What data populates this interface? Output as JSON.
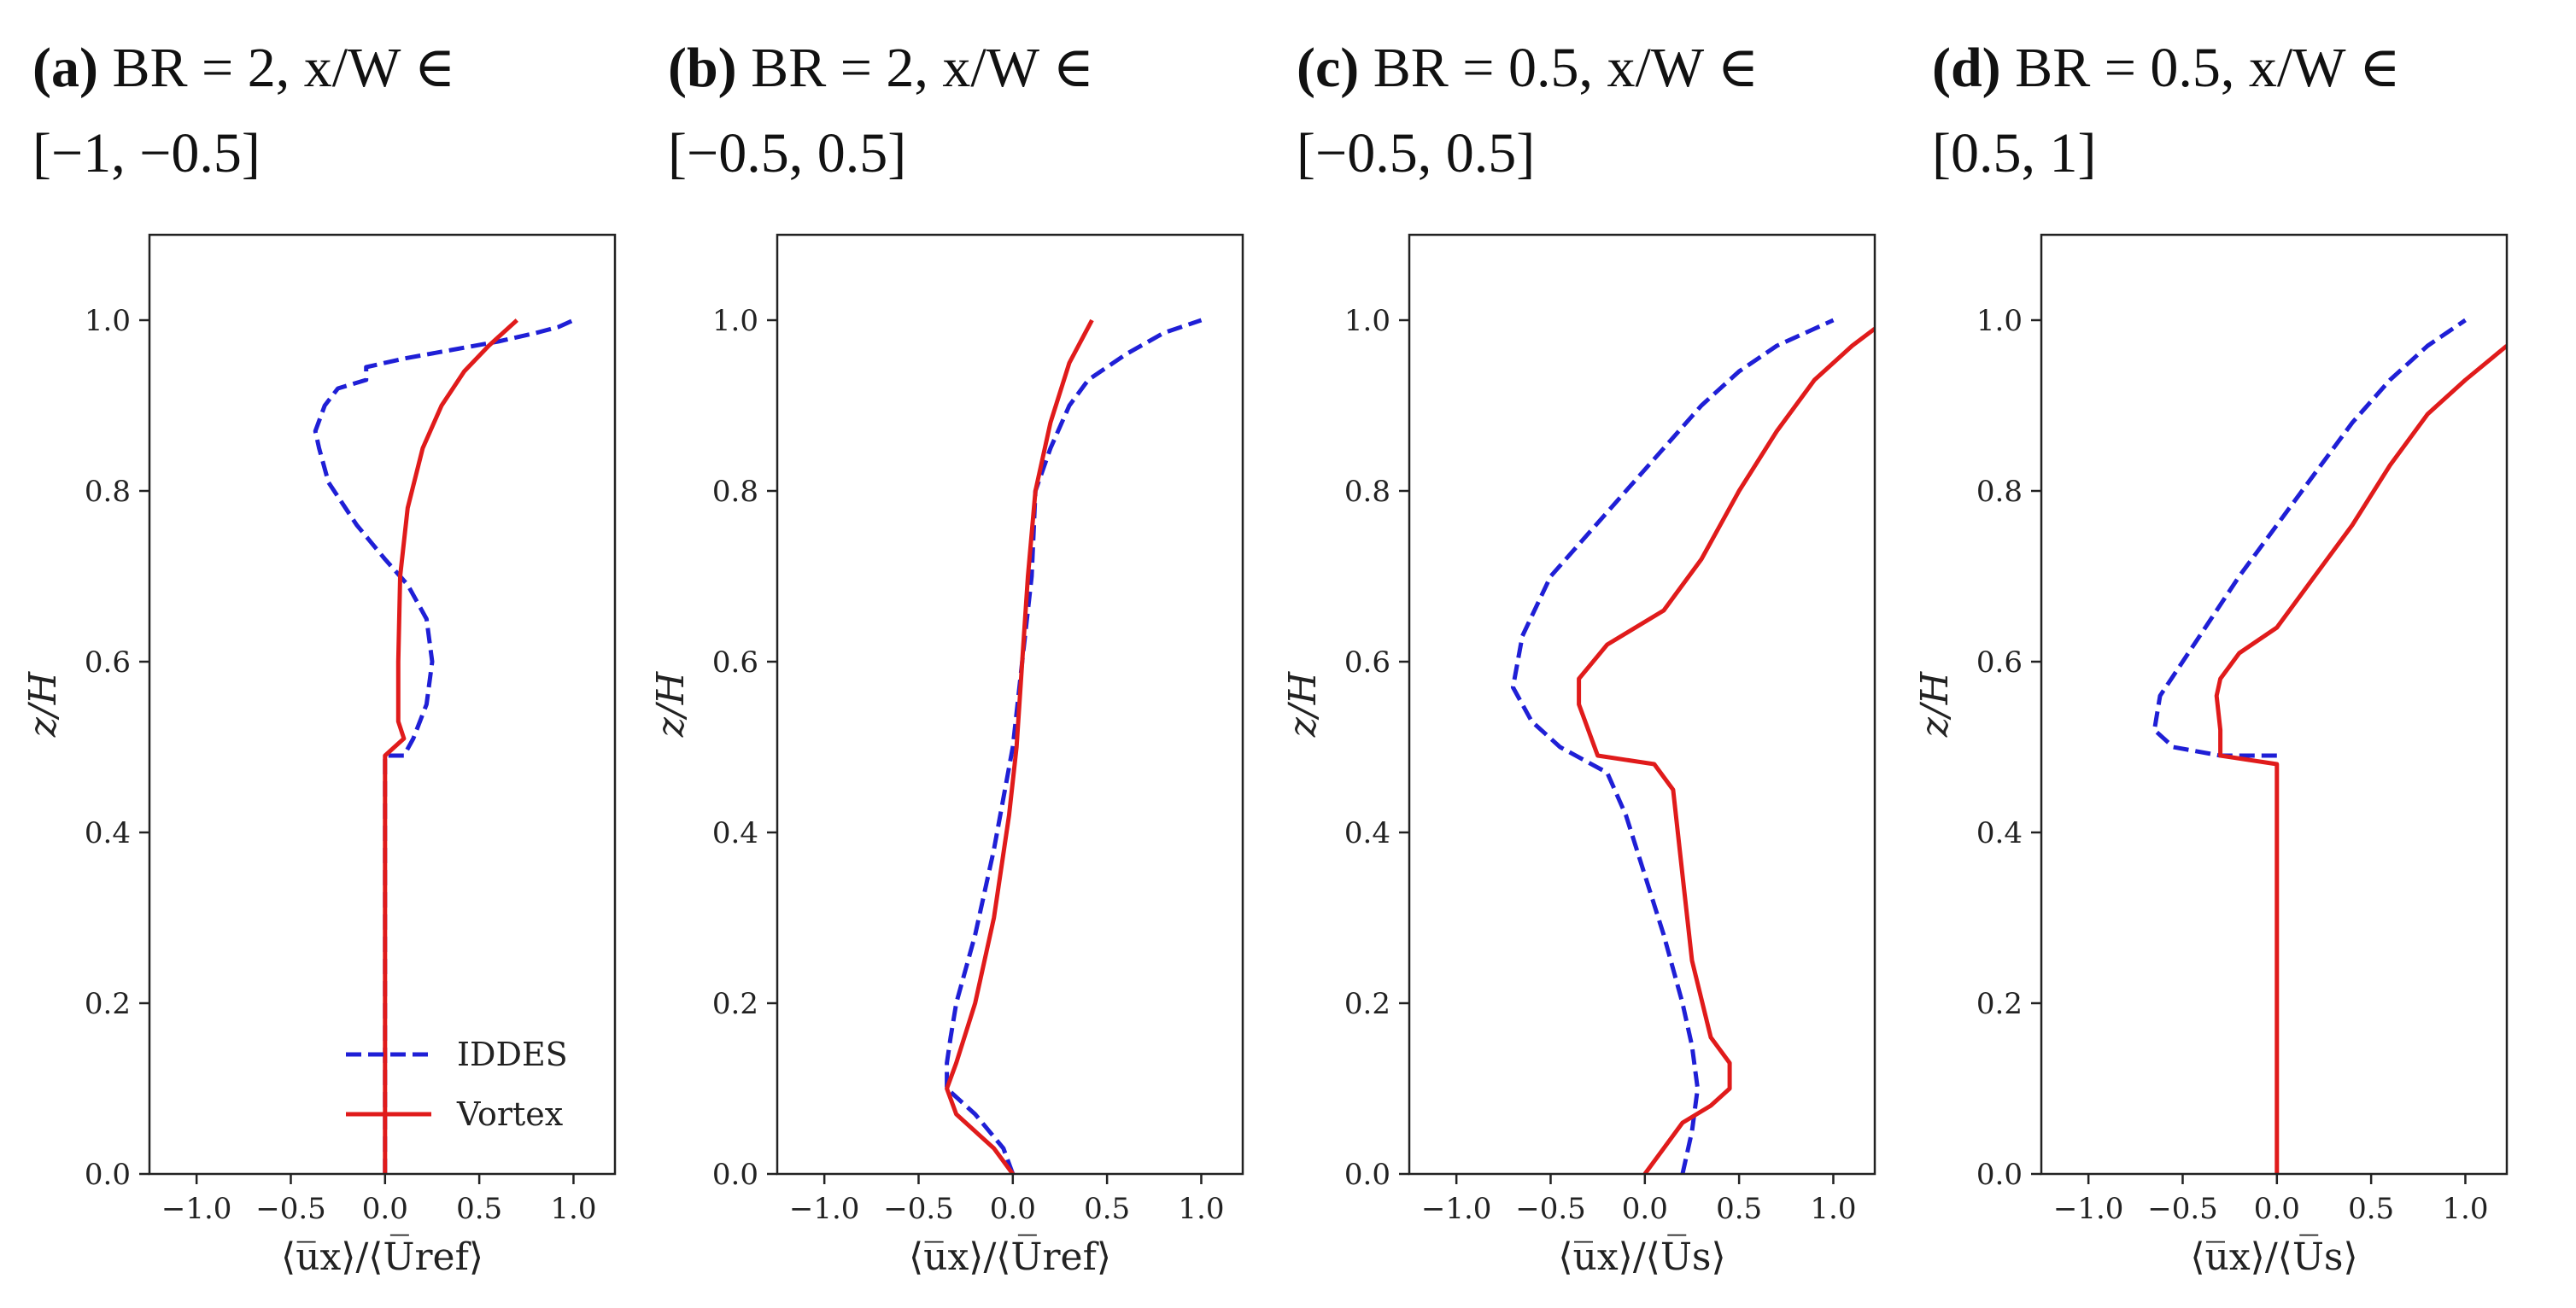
{
  "colors": {
    "iddes": "#1f1fd6",
    "vortex": "#e01b1b",
    "axis": "#222222"
  },
  "captions": [
    {
      "label": "(a)",
      "line1": "BR = 2, x/W ∈",
      "line2": "[−1, −0.5]"
    },
    {
      "label": "(b)",
      "line1": "BR = 2, x/W ∈",
      "line2": "[−0.5, 0.5]"
    },
    {
      "label": "(c)",
      "line1": "BR = 0.5, x/W ∈",
      "line2": "[−0.5, 0.5]"
    },
    {
      "label": "(d)",
      "line1": "BR = 0.5, x/W ∈",
      "line2": "[0.5, 1]"
    }
  ],
  "chart_data": [
    {
      "type": "line",
      "title": "(a) BR = 2, x/W ∈ [−1, −0.5]",
      "xlabel": "⟨u̅x⟩/⟨U̅ref⟩",
      "ylabel": "z/H",
      "xlim": [
        -1.25,
        1.22
      ],
      "ylim": [
        0,
        1.1
      ],
      "xticks": [
        -1.0,
        -0.5,
        0.0,
        0.5,
        1.0
      ],
      "xtick_labels": [
        "−1.0",
        "−0.5",
        "0.0",
        "0.5",
        "1.0"
      ],
      "yticks": [
        0.0,
        0.2,
        0.4,
        0.6,
        0.8,
        1.0
      ],
      "ytick_labels": [
        "0.0",
        "0.2",
        "0.4",
        "0.6",
        "0.8",
        "1.0"
      ],
      "legend": {
        "position": "bottom-right",
        "entries": [
          "IDDES",
          "Vortex"
        ]
      },
      "series": [
        {
          "name": "IDDES",
          "style": "dashed",
          "color": "#1f1fd6",
          "points": [
            [
              0,
              0
            ],
            [
              0,
              0.49
            ],
            [
              0.1,
              0.49
            ],
            [
              0.15,
              0.51
            ],
            [
              0.22,
              0.55
            ],
            [
              0.25,
              0.6
            ],
            [
              0.22,
              0.65
            ],
            [
              0.12,
              0.69
            ],
            [
              0,
              0.72
            ],
            [
              -0.15,
              0.76
            ],
            [
              -0.3,
              0.81
            ],
            [
              -0.35,
              0.85
            ],
            [
              -0.37,
              0.87
            ],
            [
              -0.32,
              0.9
            ],
            [
              -0.25,
              0.92
            ],
            [
              -0.1,
              0.93
            ],
            [
              -0.1,
              0.945
            ],
            [
              0.1,
              0.955
            ],
            [
              0.35,
              0.965
            ],
            [
              0.6,
              0.975
            ],
            [
              0.8,
              0.985
            ],
            [
              0.92,
              0.992
            ],
            [
              1.0,
              1.0
            ]
          ]
        },
        {
          "name": "Vortex",
          "style": "solid",
          "color": "#e01b1b",
          "points": [
            [
              0,
              0
            ],
            [
              0,
              0.49
            ],
            [
              0.05,
              0.5
            ],
            [
              0.1,
              0.51
            ],
            [
              0.07,
              0.53
            ],
            [
              0.07,
              0.6
            ],
            [
              0.08,
              0.7
            ],
            [
              0.12,
              0.78
            ],
            [
              0.2,
              0.85
            ],
            [
              0.3,
              0.9
            ],
            [
              0.42,
              0.94
            ],
            [
              0.55,
              0.97
            ],
            [
              0.7,
              1.0
            ]
          ]
        }
      ]
    },
    {
      "type": "line",
      "title": "(b) BR = 2, x/W ∈ [−0.5, 0.5]",
      "xlabel": "⟨u̅x⟩/⟨U̅ref⟩",
      "ylabel": "z/H",
      "xlim": [
        -1.25,
        1.22
      ],
      "ylim": [
        0,
        1.1
      ],
      "xticks": [
        -1.0,
        -0.5,
        0.0,
        0.5,
        1.0
      ],
      "xtick_labels": [
        "−1.0",
        "−0.5",
        "0.0",
        "0.5",
        "1.0"
      ],
      "yticks": [
        0.0,
        0.2,
        0.4,
        0.6,
        0.8,
        1.0
      ],
      "ytick_labels": [
        "0.0",
        "0.2",
        "0.4",
        "0.6",
        "0.8",
        "1.0"
      ],
      "series": [
        {
          "name": "IDDES",
          "style": "dashed",
          "color": "#1f1fd6",
          "points": [
            [
              0,
              0
            ],
            [
              -0.05,
              0.03
            ],
            [
              -0.2,
              0.07
            ],
            [
              -0.35,
              0.1
            ],
            [
              -0.35,
              0.13
            ],
            [
              -0.33,
              0.16
            ],
            [
              -0.3,
              0.2
            ],
            [
              -0.2,
              0.28
            ],
            [
              -0.1,
              0.38
            ],
            [
              0,
              0.5
            ],
            [
              0.05,
              0.6
            ],
            [
              0.1,
              0.7
            ],
            [
              0.12,
              0.8
            ],
            [
              0.2,
              0.85
            ],
            [
              0.3,
              0.9
            ],
            [
              0.4,
              0.93
            ],
            [
              0.6,
              0.96
            ],
            [
              0.8,
              0.985
            ],
            [
              1.0,
              1.0
            ]
          ]
        },
        {
          "name": "Vortex",
          "style": "solid",
          "color": "#e01b1b",
          "points": [
            [
              0,
              0
            ],
            [
              -0.1,
              0.03
            ],
            [
              -0.3,
              0.07
            ],
            [
              -0.35,
              0.1
            ],
            [
              -0.3,
              0.13
            ],
            [
              -0.2,
              0.2
            ],
            [
              -0.1,
              0.3
            ],
            [
              -0.02,
              0.42
            ],
            [
              0.02,
              0.5
            ],
            [
              0.05,
              0.6
            ],
            [
              0.08,
              0.7
            ],
            [
              0.12,
              0.8
            ],
            [
              0.2,
              0.88
            ],
            [
              0.3,
              0.95
            ],
            [
              0.42,
              1.0
            ]
          ]
        }
      ]
    },
    {
      "type": "line",
      "title": "(c) BR = 0.5, x/W ∈ [−0.5, 0.5]",
      "xlabel": "⟨u̅x⟩/⟨U̅s⟩",
      "ylabel": "z/H",
      "xlim": [
        -1.25,
        1.22
      ],
      "ylim": [
        0,
        1.1
      ],
      "xticks": [
        -1.0,
        -0.5,
        0.0,
        0.5,
        1.0
      ],
      "xtick_labels": [
        "−1.0",
        "−0.5",
        "0.0",
        "0.5",
        "1.0"
      ],
      "yticks": [
        0.0,
        0.2,
        0.4,
        0.6,
        0.8,
        1.0
      ],
      "ytick_labels": [
        "0.0",
        "0.2",
        "0.4",
        "0.6",
        "0.8",
        "1.0"
      ],
      "series": [
        {
          "name": "IDDES",
          "style": "dashed",
          "color": "#1f1fd6",
          "points": [
            [
              0.2,
              0
            ],
            [
              0.25,
              0.05
            ],
            [
              0.28,
              0.1
            ],
            [
              0.25,
              0.15
            ],
            [
              0.2,
              0.2
            ],
            [
              0.1,
              0.28
            ],
            [
              0,
              0.35
            ],
            [
              -0.1,
              0.42
            ],
            [
              -0.2,
              0.47
            ],
            [
              -0.45,
              0.5
            ],
            [
              -0.6,
              0.53
            ],
            [
              -0.7,
              0.57
            ],
            [
              -0.65,
              0.63
            ],
            [
              -0.5,
              0.7
            ],
            [
              -0.3,
              0.75
            ],
            [
              -0.1,
              0.8
            ],
            [
              0.1,
              0.85
            ],
            [
              0.3,
              0.9
            ],
            [
              0.5,
              0.94
            ],
            [
              0.7,
              0.97
            ],
            [
              0.9,
              0.99
            ],
            [
              1.0,
              1.0
            ]
          ]
        },
        {
          "name": "Vortex",
          "style": "solid",
          "color": "#e01b1b",
          "points": [
            [
              0,
              0
            ],
            [
              0.1,
              0.03
            ],
            [
              0.2,
              0.06
            ],
            [
              0.35,
              0.08
            ],
            [
              0.45,
              0.1
            ],
            [
              0.45,
              0.13
            ],
            [
              0.35,
              0.16
            ],
            [
              0.25,
              0.25
            ],
            [
              0.2,
              0.35
            ],
            [
              0.15,
              0.45
            ],
            [
              0.05,
              0.48
            ],
            [
              -0.25,
              0.49
            ],
            [
              -0.3,
              0.52
            ],
            [
              -0.35,
              0.55
            ],
            [
              -0.35,
              0.58
            ],
            [
              -0.2,
              0.62
            ],
            [
              0.1,
              0.66
            ],
            [
              0.3,
              0.72
            ],
            [
              0.5,
              0.8
            ],
            [
              0.7,
              0.87
            ],
            [
              0.9,
              0.93
            ],
            [
              1.1,
              0.97
            ],
            [
              1.22,
              0.99
            ]
          ]
        }
      ]
    },
    {
      "type": "line",
      "title": "(d) BR = 0.5, x/W ∈ [0.5, 1]",
      "xlabel": "⟨u̅x⟩/⟨U̅s⟩",
      "ylabel": "z/H",
      "xlim": [
        -1.25,
        1.22
      ],
      "ylim": [
        0,
        1.1
      ],
      "xticks": [
        -1.0,
        -0.5,
        0.0,
        0.5,
        1.0
      ],
      "xtick_labels": [
        "−1.0",
        "−0.5",
        "0.0",
        "0.5",
        "1.0"
      ],
      "yticks": [
        0.0,
        0.2,
        0.4,
        0.6,
        0.8,
        1.0
      ],
      "ytick_labels": [
        "0.0",
        "0.2",
        "0.4",
        "0.6",
        "0.8",
        "1.0"
      ],
      "series": [
        {
          "name": "IDDES",
          "style": "dashed",
          "color": "#1f1fd6",
          "points": [
            [
              0,
              0.49
            ],
            [
              -0.3,
              0.49
            ],
            [
              -0.55,
              0.5
            ],
            [
              -0.65,
              0.52
            ],
            [
              -0.62,
              0.56
            ],
            [
              -0.5,
              0.6
            ],
            [
              -0.35,
              0.65
            ],
            [
              -0.2,
              0.7
            ],
            [
              0,
              0.76
            ],
            [
              0.2,
              0.82
            ],
            [
              0.4,
              0.88
            ],
            [
              0.6,
              0.93
            ],
            [
              0.8,
              0.97
            ],
            [
              1.0,
              1.0
            ]
          ]
        },
        {
          "name": "Vortex",
          "style": "solid",
          "color": "#e01b1b",
          "points": [
            [
              0,
              0
            ],
            [
              0,
              0.48
            ],
            [
              -0.3,
              0.49
            ],
            [
              -0.3,
              0.52
            ],
            [
              -0.32,
              0.56
            ],
            [
              -0.3,
              0.58
            ],
            [
              -0.2,
              0.61
            ],
            [
              0,
              0.64
            ],
            [
              0.2,
              0.7
            ],
            [
              0.4,
              0.76
            ],
            [
              0.6,
              0.83
            ],
            [
              0.8,
              0.89
            ],
            [
              1.0,
              0.93
            ],
            [
              1.22,
              0.97
            ]
          ]
        }
      ]
    }
  ]
}
